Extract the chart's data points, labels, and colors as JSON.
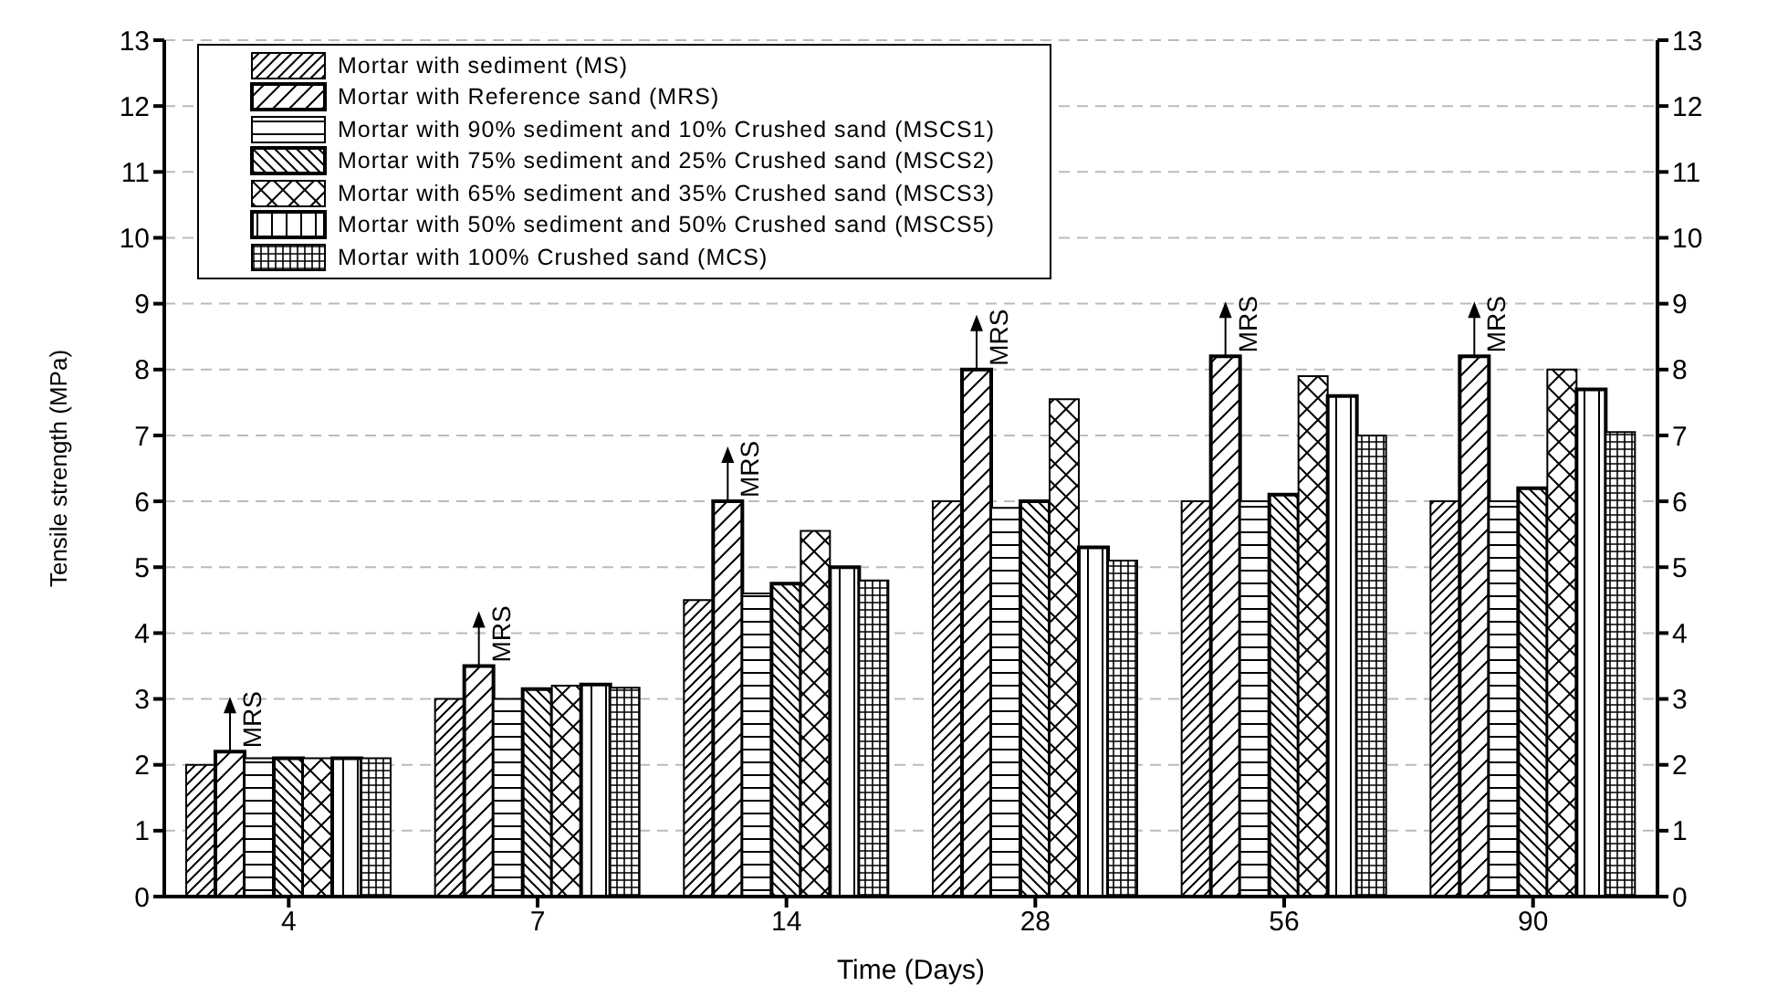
{
  "chart_data": {
    "type": "bar",
    "xlabel": "Time (Days)",
    "ylabel": "Tensile strength (MPa)",
    "categories": [
      "4",
      "7",
      "14",
      "28",
      "56",
      "90"
    ],
    "series": [
      {
        "name": "Mortar with sediment (MS)",
        "color": "#000000",
        "values": [
          2.0,
          3.0,
          4.5,
          6.0,
          6.0,
          6.0
        ]
      },
      {
        "name": "Mortar with Reference sand (MRS)",
        "color": "#000000",
        "values": [
          2.2,
          3.5,
          6.0,
          8.0,
          8.2,
          8.2
        ]
      },
      {
        "name": "Mortar with 90% sediment and 10% Crushed sand (MSCS1)",
        "color": "#000000",
        "values": [
          2.1,
          3.0,
          4.6,
          5.9,
          6.0,
          6.0
        ]
      },
      {
        "name": "Mortar with 75% sediment and 25% Crushed sand (MSCS2)",
        "color": "#000000",
        "values": [
          2.1,
          3.15,
          4.75,
          6.0,
          6.1,
          6.2
        ]
      },
      {
        "name": "Mortar with 65% sediment and 35% Crushed sand (MSCS3)",
        "color": "#000000",
        "values": [
          2.1,
          3.2,
          5.55,
          7.55,
          7.9,
          8.0
        ]
      },
      {
        "name": "Mortar with 50% sediment and 50% Crushed sand (MSCS5)",
        "color": "#000000",
        "values": [
          2.1,
          3.22,
          5.0,
          5.3,
          7.6,
          7.7
        ]
      },
      {
        "name": "Mortar with 100% Crushed sand (MCS)",
        "color": "#000000",
        "values": [
          2.1,
          3.17,
          4.8,
          5.1,
          7.0,
          7.05
        ]
      }
    ],
    "ylim": [
      0,
      13
    ],
    "yticks": [
      0,
      1,
      2,
      3,
      4,
      5,
      6,
      7,
      8,
      9,
      10,
      11,
      12,
      13
    ],
    "y2lim": [
      0,
      13
    ],
    "y2ticks": [
      0,
      1,
      2,
      3,
      4,
      5,
      6,
      7,
      8,
      9,
      10,
      11,
      12,
      13
    ],
    "grid": "y",
    "legend": "top left",
    "annotations": [
      "MRS",
      "MRS",
      "MRS",
      "MRS",
      "MRS",
      "MRS"
    ]
  }
}
